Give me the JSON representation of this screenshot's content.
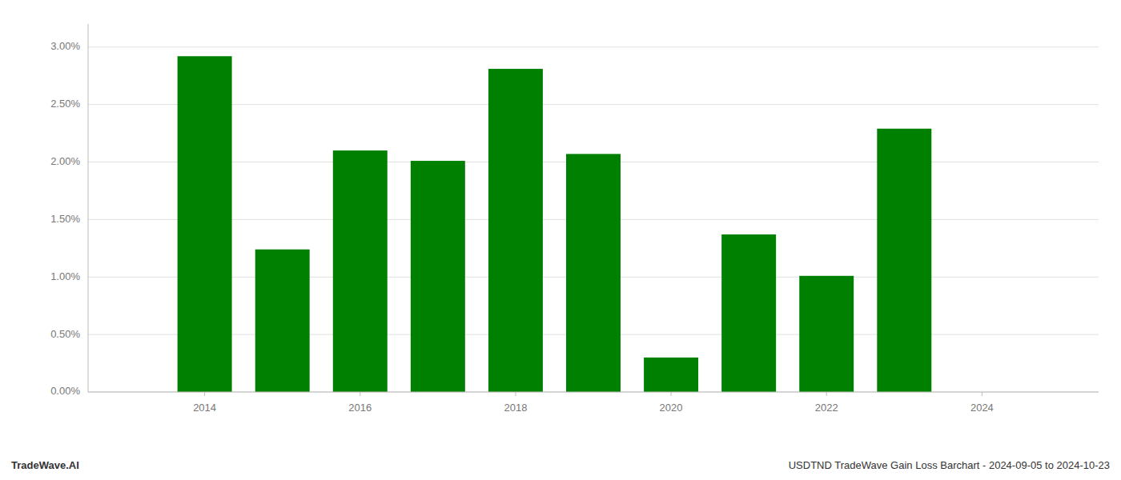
{
  "chart_data": {
    "type": "bar",
    "x": [
      2014,
      2015,
      2016,
      2017,
      2018,
      2019,
      2020,
      2021,
      2022,
      2023,
      2024
    ],
    "values": [
      0.0292,
      0.0124,
      0.021,
      0.0201,
      0.0281,
      0.0207,
      0.003,
      0.0137,
      0.0101,
      0.0229,
      0.0
    ],
    "color": "#008000",
    "ylim": [
      0,
      0.032
    ],
    "yticks": [
      {
        "value": 0,
        "label": "0.00%"
      },
      {
        "value": 0.005,
        "label": "0.50%"
      },
      {
        "value": 0.01,
        "label": "1.00%"
      },
      {
        "value": 0.015,
        "label": "1.50%"
      },
      {
        "value": 0.02,
        "label": "2.00%"
      },
      {
        "value": 0.025,
        "label": "2.50%"
      },
      {
        "value": 0.03,
        "label": "3.00%"
      }
    ],
    "xlim": [
      2012.5,
      2025.5
    ],
    "xticks": [
      2014,
      2016,
      2018,
      2020,
      2022,
      2024
    ],
    "grid": true,
    "annotations": [
      "TradeWave.AI",
      "USDTND TradeWave Gain Loss Barchart - 2024-09-05 to 2024-10-23"
    ]
  }
}
